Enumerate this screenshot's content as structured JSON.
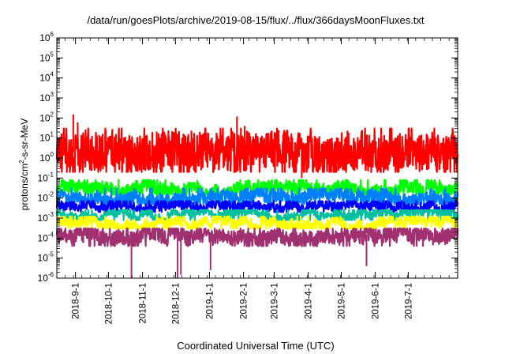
{
  "chart_data": {
    "type": "line",
    "title": "/data/run/goesPlots/archive/2019-08-15/flux/../flux/366daysMoonFluxes.txt",
    "xlabel": "Coordinated Universal Time (UTC)",
    "ylabel": "protons/cm2-s-sr-MeV",
    "ylabel_parts": {
      "base": "protons/cm",
      "sup": "2",
      "rest": "-s-sr-MeV"
    },
    "y_scale": "log",
    "ylim": [
      1e-06,
      1000000.0
    ],
    "y_ticks": [
      {
        "base": "10",
        "exp": "-6"
      },
      {
        "base": "10",
        "exp": "-5"
      },
      {
        "base": "10",
        "exp": "-4"
      },
      {
        "base": "10",
        "exp": "-3"
      },
      {
        "base": "10",
        "exp": "-2"
      },
      {
        "base": "10",
        "exp": "-1"
      },
      {
        "base": "10",
        "exp": "0"
      },
      {
        "base": "10",
        "exp": "1"
      },
      {
        "base": "10",
        "exp": "2"
      },
      {
        "base": "10",
        "exp": "3"
      },
      {
        "base": "10",
        "exp": "4"
      },
      {
        "base": "10",
        "exp": "5"
      },
      {
        "base": "10",
        "exp": "6"
      }
    ],
    "xlim": [
      "2018-08-15",
      "2019-08-15"
    ],
    "x_ticks": [
      "2018-9-1",
      "2018-10-1",
      "2018-11-1",
      "2018-12-1",
      "2019-1-1",
      "2019-2-1",
      "2019-3-1",
      "2019-4-1",
      "2019-5-1",
      "2019-6-1",
      "2019-7-1"
    ],
    "grid": false,
    "series": [
      {
        "color": "#ff0000",
        "typical": 2,
        "low": 0.2,
        "high": 30,
        "peaks": [
          {
            "x": "2018-08-30",
            "y": 150
          },
          {
            "x": "2018-09-03",
            "y": 60
          },
          {
            "x": "2019-01-26",
            "y": 120
          },
          {
            "x": "2019-02-02",
            "y": 40
          },
          {
            "x": "2019-03-26",
            "y": 0.1
          }
        ]
      },
      {
        "color": "#00ff00",
        "typical": 0.03,
        "low": 0.015,
        "high": 0.08
      },
      {
        "color": "#0080ff",
        "typical": 0.012,
        "low": 0.005,
        "high": 0.03
      },
      {
        "color": "#0000ff",
        "typical": 0.004,
        "low": 0.002,
        "high": 0.007
      },
      {
        "color": "#00c0a0",
        "typical": 0.0015,
        "low": 0.0008,
        "high": 0.0025
      },
      {
        "color": "#ffff00",
        "typical": 0.0006,
        "low": 0.0003,
        "high": 0.0012
      },
      {
        "color": "#a03070",
        "typical": 0.00015,
        "low": 4e-05,
        "high": 0.0003,
        "dips": [
          {
            "x": "2018-10-22",
            "y": 1e-06
          },
          {
            "x": "2018-12-03",
            "y": 1e-06
          },
          {
            "x": "2018-12-06",
            "y": 1.5e-06
          },
          {
            "x": "2019-01-02",
            "y": 2.5e-06
          },
          {
            "x": "2019-05-24",
            "y": 4e-06
          }
        ]
      }
    ]
  }
}
